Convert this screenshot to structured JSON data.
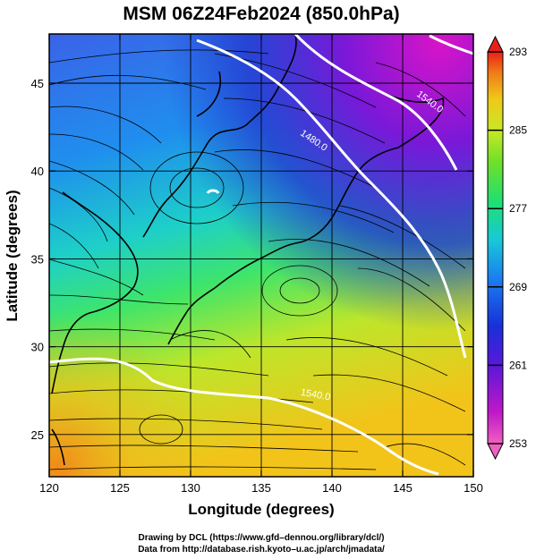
{
  "title": "MSM 06Z24Feb2024 (850.0hPa)",
  "xlabel": "Longitude (degrees)",
  "ylabel": "Latitude  (degrees)",
  "x_ticks": [
    {
      "value": 120,
      "label": "120"
    },
    {
      "value": 125,
      "label": "125"
    },
    {
      "value": 130,
      "label": "130"
    },
    {
      "value": 135,
      "label": "135"
    },
    {
      "value": 140,
      "label": "140"
    },
    {
      "value": 145,
      "label": "145"
    },
    {
      "value": 150,
      "label": "150"
    }
  ],
  "y_ticks": [
    {
      "value": 25,
      "label": "25"
    },
    {
      "value": 30,
      "label": "30"
    },
    {
      "value": 35,
      "label": "35"
    },
    {
      "value": 40,
      "label": "40"
    },
    {
      "value": 45,
      "label": "45"
    }
  ],
  "colorbar": {
    "min": 253,
    "max": 293,
    "ticks": [
      {
        "value": 253,
        "label": "253"
      },
      {
        "value": 261,
        "label": "261"
      },
      {
        "value": 269,
        "label": "269"
      },
      {
        "value": 277,
        "label": "277"
      },
      {
        "value": 285,
        "label": "285"
      },
      {
        "value": 293,
        "label": "293"
      }
    ]
  },
  "contour_labels": [
    {
      "text": "1480.0",
      "lon": 138.6,
      "lat": 41.6,
      "angle": 34
    },
    {
      "text": "1540.0",
      "lon": 146.8,
      "lat": 43.8,
      "angle": 36
    },
    {
      "text": "1540.0",
      "lon": 138.8,
      "lat": 27.1,
      "angle": 10
    }
  ],
  "credits": {
    "line1": "Drawing by DCL (https://www.gfd–dennou.org/library/dcl/)",
    "line2": "Data from http://database.rish.kyoto–u.ac.jp/arch/jmadata/"
  },
  "colors": {
    "contour": "#ffffff",
    "coast": "#000000",
    "streamline": "#000000"
  }
}
